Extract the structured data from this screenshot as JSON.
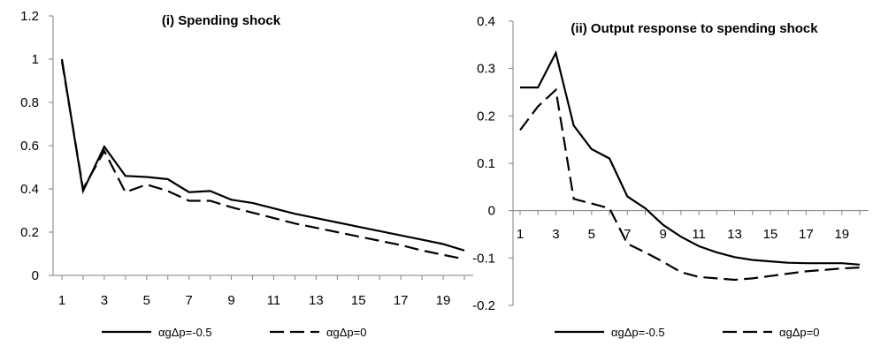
{
  "chart_data": [
    {
      "type": "line",
      "title": "(i) Spending shock",
      "xlabel": "",
      "ylabel": "",
      "x": [
        1,
        2,
        3,
        4,
        5,
        6,
        7,
        8,
        9,
        10,
        11,
        12,
        13,
        14,
        15,
        16,
        17,
        18,
        19,
        20
      ],
      "xtick_labels": [
        "1",
        "3",
        "5",
        "7",
        "9",
        "11",
        "13",
        "15",
        "17",
        "19"
      ],
      "ylim": [
        0,
        1.2
      ],
      "ytick_labels": [
        "0",
        "0.2",
        "0.4",
        "0.6",
        "0.8",
        "1",
        "1.2"
      ],
      "grid": false,
      "legend_position": "bottom",
      "series": [
        {
          "name": "αgΔp=-0.5",
          "style": "solid",
          "values": [
            1.0,
            0.39,
            0.595,
            0.46,
            0.455,
            0.445,
            0.385,
            0.39,
            0.35,
            0.335,
            0.31,
            0.285,
            0.265,
            0.245,
            0.225,
            0.205,
            0.185,
            0.165,
            0.145,
            0.115
          ]
        },
        {
          "name": "αgΔp=0",
          "style": "dashed",
          "values": [
            0.99,
            0.4,
            0.575,
            0.385,
            0.42,
            0.39,
            0.345,
            0.345,
            0.315,
            0.29,
            0.265,
            0.24,
            0.22,
            0.2,
            0.18,
            0.16,
            0.14,
            0.115,
            0.095,
            0.075
          ]
        }
      ]
    },
    {
      "type": "line",
      "title": "(ii) Output response to spending shock",
      "xlabel": "",
      "ylabel": "",
      "x": [
        1,
        2,
        3,
        4,
        5,
        6,
        7,
        8,
        9,
        10,
        11,
        12,
        13,
        14,
        15,
        16,
        17,
        18,
        19,
        20
      ],
      "xtick_labels": [
        "1",
        "3",
        "5",
        "7",
        "9",
        "11",
        "13",
        "15",
        "17",
        "19"
      ],
      "ylim": [
        -0.2,
        0.4
      ],
      "ytick_labels": [
        "-0.2",
        "-0.1",
        "0",
        "0.1",
        "0.2",
        "0.3",
        "0.4"
      ],
      "grid": false,
      "legend_position": "bottom",
      "series": [
        {
          "name": "αgΔp=-0.5",
          "style": "solid",
          "values": [
            0.26,
            0.26,
            0.333,
            0.18,
            0.13,
            0.11,
            0.03,
            0.005,
            -0.03,
            -0.055,
            -0.075,
            -0.088,
            -0.098,
            -0.104,
            -0.107,
            -0.11,
            -0.111,
            -0.111,
            -0.111,
            -0.114
          ]
        },
        {
          "name": "αgΔp=0",
          "style": "dashed",
          "values": [
            0.17,
            0.22,
            0.255,
            0.025,
            0.015,
            0.005,
            -0.07,
            -0.088,
            -0.108,
            -0.13,
            -0.14,
            -0.143,
            -0.146,
            -0.143,
            -0.138,
            -0.133,
            -0.128,
            -0.125,
            -0.122,
            -0.12
          ]
        }
      ]
    }
  ]
}
